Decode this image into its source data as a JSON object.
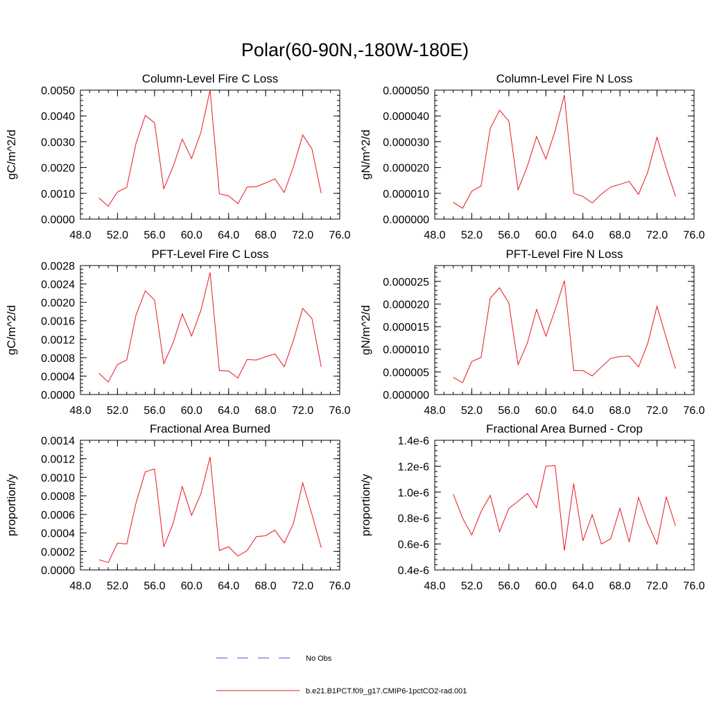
{
  "page": {
    "title": "Polar(60-90N,-180W-180E)"
  },
  "legend": {
    "items": [
      {
        "label": "No Obs",
        "color": "#4b4bd6",
        "dashed": true
      },
      {
        "label": "b.e21.B1PCT.f09_g17.CMIP6-1pctCO2-rad.001",
        "color": "#e8141b",
        "dashed": false
      }
    ]
  },
  "chart_data": [
    {
      "type": "line",
      "title": "Column-Level Fire C Loss",
      "ylabel": "gC/m^2/d",
      "xlim": [
        48,
        76
      ],
      "ylim": [
        0,
        0.005
      ],
      "xticks": [
        "48.0",
        "52.0",
        "56.0",
        "60.0",
        "64.0",
        "68.0",
        "72.0",
        "76.0"
      ],
      "yticks": [
        0,
        0.001,
        0.002,
        0.003,
        0.004,
        0.005
      ],
      "ytick_labels": [
        "0.0000",
        "0.0010",
        "0.0020",
        "0.0030",
        "0.0040",
        "0.0050"
      ],
      "series": [
        {
          "name": "b.e21.B1PCT.f09_g17.CMIP6-1pctCO2-rad.001",
          "x": [
            50,
            51,
            52,
            53,
            54,
            55,
            56,
            57,
            58,
            59,
            60,
            61,
            62,
            63,
            64,
            65,
            66,
            67,
            68,
            69,
            70,
            71,
            72,
            73,
            74
          ],
          "values": [
            0.00082,
            0.0005,
            0.00105,
            0.00123,
            0.00293,
            0.00402,
            0.00373,
            0.00118,
            0.00203,
            0.0031,
            0.00235,
            0.00335,
            0.005,
            0.00098,
            0.0009,
            0.0006,
            0.00124,
            0.00126,
            0.0014,
            0.00156,
            0.00103,
            0.00203,
            0.00326,
            0.00272,
            0.001
          ]
        }
      ]
    },
    {
      "type": "line",
      "title": "Column-Level Fire N Loss",
      "ylabel": "gN/m^2/d",
      "xlim": [
        48,
        76
      ],
      "ylim": [
        0,
        5e-05
      ],
      "xticks": [
        "48.0",
        "52.0",
        "56.0",
        "60.0",
        "64.0",
        "68.0",
        "72.0",
        "76.0"
      ],
      "yticks": [
        0,
        1e-05,
        2e-05,
        3e-05,
        4e-05,
        5e-05
      ],
      "ytick_labels": [
        "0.000000",
        "0.000010",
        "0.000020",
        "0.000030",
        "0.000040",
        "0.000050"
      ],
      "series": [
        {
          "name": "b.e21.B1PCT.f09_g17.CMIP6-1pctCO2-rad.001",
          "x": [
            50,
            51,
            52,
            53,
            54,
            55,
            56,
            57,
            58,
            59,
            60,
            61,
            62,
            63,
            64,
            65,
            66,
            67,
            68,
            69,
            70,
            71,
            72,
            73,
            74
          ],
          "values": [
            6.5e-06,
            4.2e-06,
            1.08e-05,
            1.28e-05,
            3.52e-05,
            4.22e-05,
            3.8e-05,
            1.14e-05,
            2.05e-05,
            3.2e-05,
            2.33e-05,
            3.42e-05,
            4.81e-05,
            1e-05,
            8.8e-06,
            6.3e-06,
            9.7e-06,
            1.24e-05,
            1.35e-05,
            1.46e-05,
            9.6e-06,
            1.82e-05,
            3.17e-05,
            1.97e-05,
            8.8e-06
          ]
        }
      ]
    },
    {
      "type": "line",
      "title": "PFT-Level Fire C Loss",
      "ylabel": "gC/m^2/d",
      "xlim": [
        48,
        76
      ],
      "ylim": [
        0,
        0.0028
      ],
      "xticks": [
        "48.0",
        "52.0",
        "56.0",
        "60.0",
        "64.0",
        "68.0",
        "72.0",
        "76.0"
      ],
      "yticks": [
        0,
        0.0004,
        0.0008,
        0.0012,
        0.0016,
        0.002,
        0.0024,
        0.0028
      ],
      "ytick_labels": [
        "0.0000",
        "0.0004",
        "0.0008",
        "0.0012",
        "0.0016",
        "0.0020",
        "0.0024",
        "0.0028"
      ],
      "series": [
        {
          "name": "b.e21.B1PCT.f09_g17.CMIP6-1pctCO2-rad.001",
          "x": [
            50,
            51,
            52,
            53,
            54,
            55,
            56,
            57,
            58,
            59,
            60,
            61,
            62,
            63,
            64,
            65,
            66,
            67,
            68,
            69,
            70,
            71,
            72,
            73,
            74
          ],
          "values": [
            0.00046,
            0.00027,
            0.00065,
            0.00075,
            0.00172,
            0.00225,
            0.00205,
            0.00067,
            0.00112,
            0.00175,
            0.00127,
            0.00182,
            0.00265,
            0.00052,
            0.00051,
            0.00036,
            0.00076,
            0.00075,
            0.00082,
            0.00088,
            0.0006,
            0.00118,
            0.00187,
            0.00165,
            0.0006
          ]
        }
      ]
    },
    {
      "type": "line",
      "title": "PFT-Level Fire N Loss",
      "ylabel": "gN/m^2/d",
      "xlim": [
        48,
        76
      ],
      "ylim": [
        0,
        2.85e-05
      ],
      "xticks": [
        "48.0",
        "52.0",
        "56.0",
        "60.0",
        "64.0",
        "68.0",
        "72.0",
        "76.0"
      ],
      "yticks": [
        0,
        5e-06,
        1e-05,
        1.5e-05,
        2e-05,
        2.5e-05
      ],
      "ytick_labels": [
        "0.000000",
        "0.000005",
        "0.000010",
        "0.000015",
        "0.000020",
        "0.000025"
      ],
      "series": [
        {
          "name": "b.e21.B1PCT.f09_g17.CMIP6-1pctCO2-rad.001",
          "x": [
            50,
            51,
            52,
            53,
            54,
            55,
            56,
            57,
            58,
            59,
            60,
            61,
            62,
            63,
            64,
            65,
            66,
            67,
            68,
            69,
            70,
            71,
            72,
            73,
            74
          ],
          "values": [
            3.8e-06,
            2.6e-06,
            7.3e-06,
            8.2e-06,
            2.13e-05,
            2.36e-05,
            2.02e-05,
            6.6e-06,
            1.14e-05,
            1.88e-05,
            1.29e-05,
            1.87e-05,
            2.52e-05,
            5.3e-06,
            5.3e-06,
            4.1e-06,
            6.1e-06,
            8e-06,
            8.4e-06,
            8.5e-06,
            6.1e-06,
            1.13e-05,
            1.95e-05,
            1.25e-05,
            5.7e-06
          ]
        }
      ]
    },
    {
      "type": "line",
      "title": "Fractional Area Burned",
      "ylabel": "proportion/y",
      "xlim": [
        48,
        76
      ],
      "ylim": [
        0,
        0.0014
      ],
      "xticks": [
        "48.0",
        "52.0",
        "56.0",
        "60.0",
        "64.0",
        "68.0",
        "72.0",
        "76.0"
      ],
      "yticks": [
        0,
        0.0002,
        0.0004,
        0.0006,
        0.0008,
        0.001,
        0.0012,
        0.0014
      ],
      "ytick_labels": [
        "0.0000",
        "0.0002",
        "0.0004",
        "0.0006",
        "0.0008",
        "0.0010",
        "0.0012",
        "0.0014"
      ],
      "series": [
        {
          "name": "b.e21.B1PCT.f09_g17.CMIP6-1pctCO2-rad.001",
          "x": [
            50,
            51,
            52,
            53,
            54,
            55,
            56,
            57,
            58,
            59,
            60,
            61,
            62,
            63,
            64,
            65,
            66,
            67,
            68,
            69,
            70,
            71,
            72,
            73,
            74
          ],
          "values": [
            0.00011,
            8e-05,
            0.00029,
            0.00028,
            0.00072,
            0.00106,
            0.00109,
            0.00025,
            0.0005,
            0.0009,
            0.00059,
            0.00082,
            0.00122,
            0.00021,
            0.00025,
            0.00015,
            0.00021,
            0.00036,
            0.00037,
            0.00043,
            0.00029,
            0.0005,
            0.00094,
            0.0006,
            0.00024
          ]
        }
      ]
    },
    {
      "type": "line",
      "title": "Fractional Area Burned - Crop",
      "ylabel": "proportion/y",
      "xlim": [
        48,
        76
      ],
      "ylim": [
        4e-07,
        1.4e-06
      ],
      "xticks": [
        "48.0",
        "52.0",
        "56.0",
        "60.0",
        "64.0",
        "68.0",
        "72.0",
        "76.0"
      ],
      "yticks": [
        4e-07,
        6e-07,
        8e-07,
        1e-06,
        1.2e-06,
        1.4e-06
      ],
      "ytick_labels": [
        "0.4e-6",
        "0.6e-6",
        "0.8e-6",
        "1.0e-6",
        "1.2e-6",
        "1.4e-6"
      ],
      "series": [
        {
          "name": "b.e21.B1PCT.f09_g17.CMIP6-1pctCO2-rad.001",
          "x": [
            50,
            51,
            52,
            53,
            54,
            55,
            56,
            57,
            58,
            59,
            60,
            61,
            62,
            63,
            64,
            65,
            66,
            67,
            68,
            69,
            70,
            71,
            72,
            73,
            74
          ],
          "values": [
            9.85e-07,
            8e-07,
            6.7e-07,
            8.5e-07,
            9.75e-07,
            6.95e-07,
            8.75e-07,
            9.3e-07,
            9.9e-07,
            8.8e-07,
            1.2e-06,
            1.205e-06,
            5.5e-07,
            1.065e-06,
            6.25e-07,
            8.25e-07,
            6e-07,
            6.4e-07,
            8.75e-07,
            6.15e-07,
            9.6e-07,
            7.6e-07,
            6e-07,
            9.65e-07,
            7.4e-07
          ]
        }
      ]
    }
  ]
}
